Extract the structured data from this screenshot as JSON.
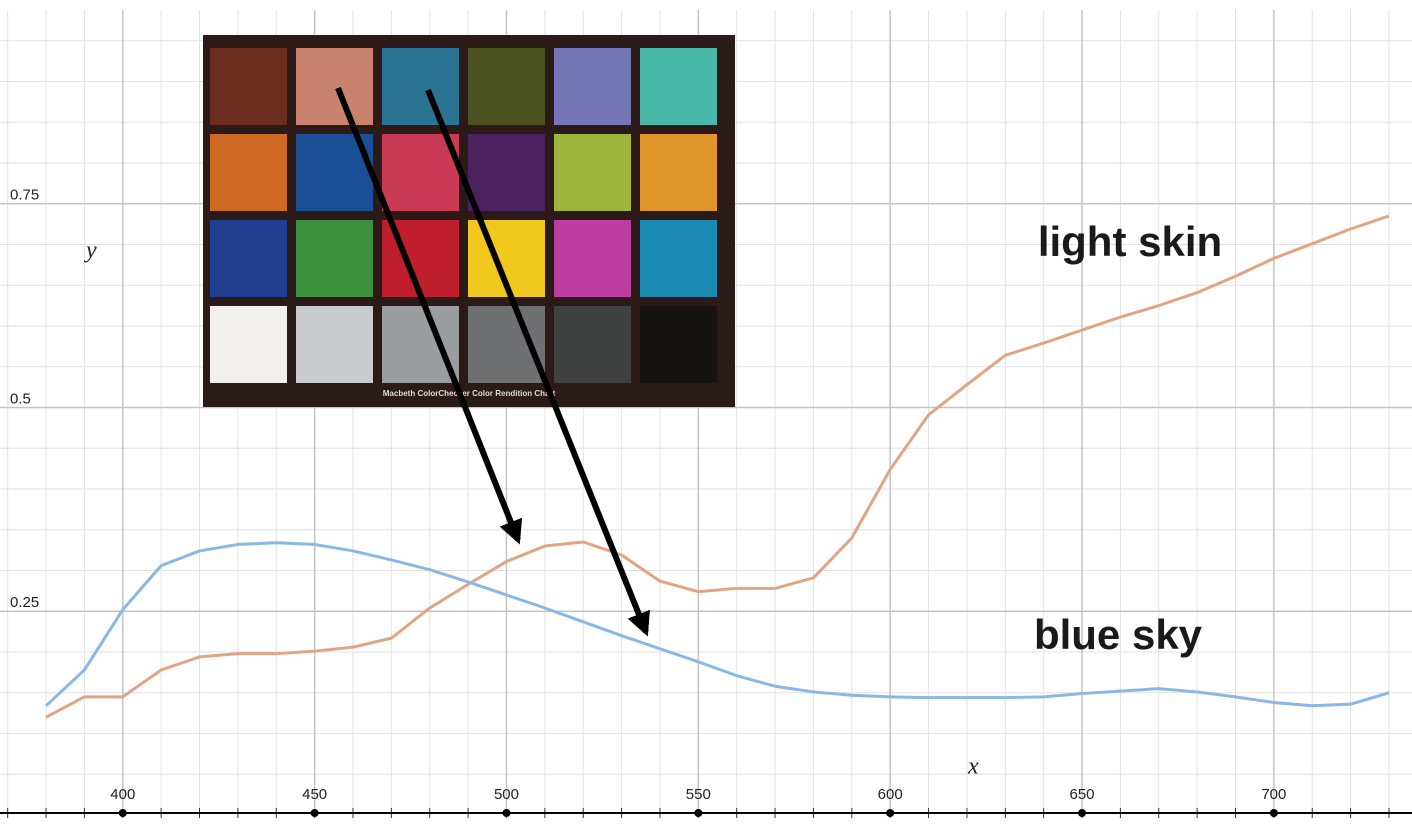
{
  "chart_data": {
    "type": "line",
    "x": [
      380,
      390,
      400,
      410,
      420,
      430,
      440,
      450,
      460,
      470,
      480,
      490,
      500,
      510,
      520,
      530,
      540,
      550,
      560,
      570,
      580,
      590,
      600,
      610,
      620,
      630,
      640,
      650,
      660,
      670,
      680,
      690,
      700,
      710,
      720,
      730
    ],
    "series": [
      {
        "name": "light skin",
        "color": "#e2a583",
        "values": [
          0.12,
          0.145,
          0.145,
          0.178,
          0.194,
          0.198,
          0.198,
          0.201,
          0.206,
          0.217,
          0.254,
          0.283,
          0.311,
          0.33,
          0.335,
          0.319,
          0.287,
          0.274,
          0.278,
          0.278,
          0.291,
          0.34,
          0.424,
          0.491,
          0.528,
          0.564,
          0.579,
          0.595,
          0.611,
          0.625,
          0.641,
          0.661,
          0.683,
          0.701,
          0.719,
          0.735
        ]
      },
      {
        "name": "blue sky",
        "color": "#8ab8e4",
        "values": [
          0.134,
          0.178,
          0.252,
          0.306,
          0.324,
          0.332,
          0.334,
          0.332,
          0.324,
          0.313,
          0.301,
          0.286,
          0.27,
          0.254,
          0.237,
          0.22,
          0.204,
          0.188,
          0.171,
          0.158,
          0.151,
          0.147,
          0.145,
          0.144,
          0.144,
          0.144,
          0.145,
          0.149,
          0.152,
          0.155,
          0.151,
          0.145,
          0.138,
          0.134,
          0.136,
          0.15
        ]
      }
    ],
    "xlabel": "x",
    "ylabel": "y",
    "xlim": [
      368,
      736
    ],
    "ylim": [
      0,
      1
    ],
    "xticks": [
      400,
      450,
      500,
      550,
      600,
      650,
      700
    ],
    "yticks": [
      0.25,
      0.5,
      0.75
    ],
    "grid": true,
    "inset_caption": "Macbeth ColorChecker Color Rendition Chart"
  }
}
